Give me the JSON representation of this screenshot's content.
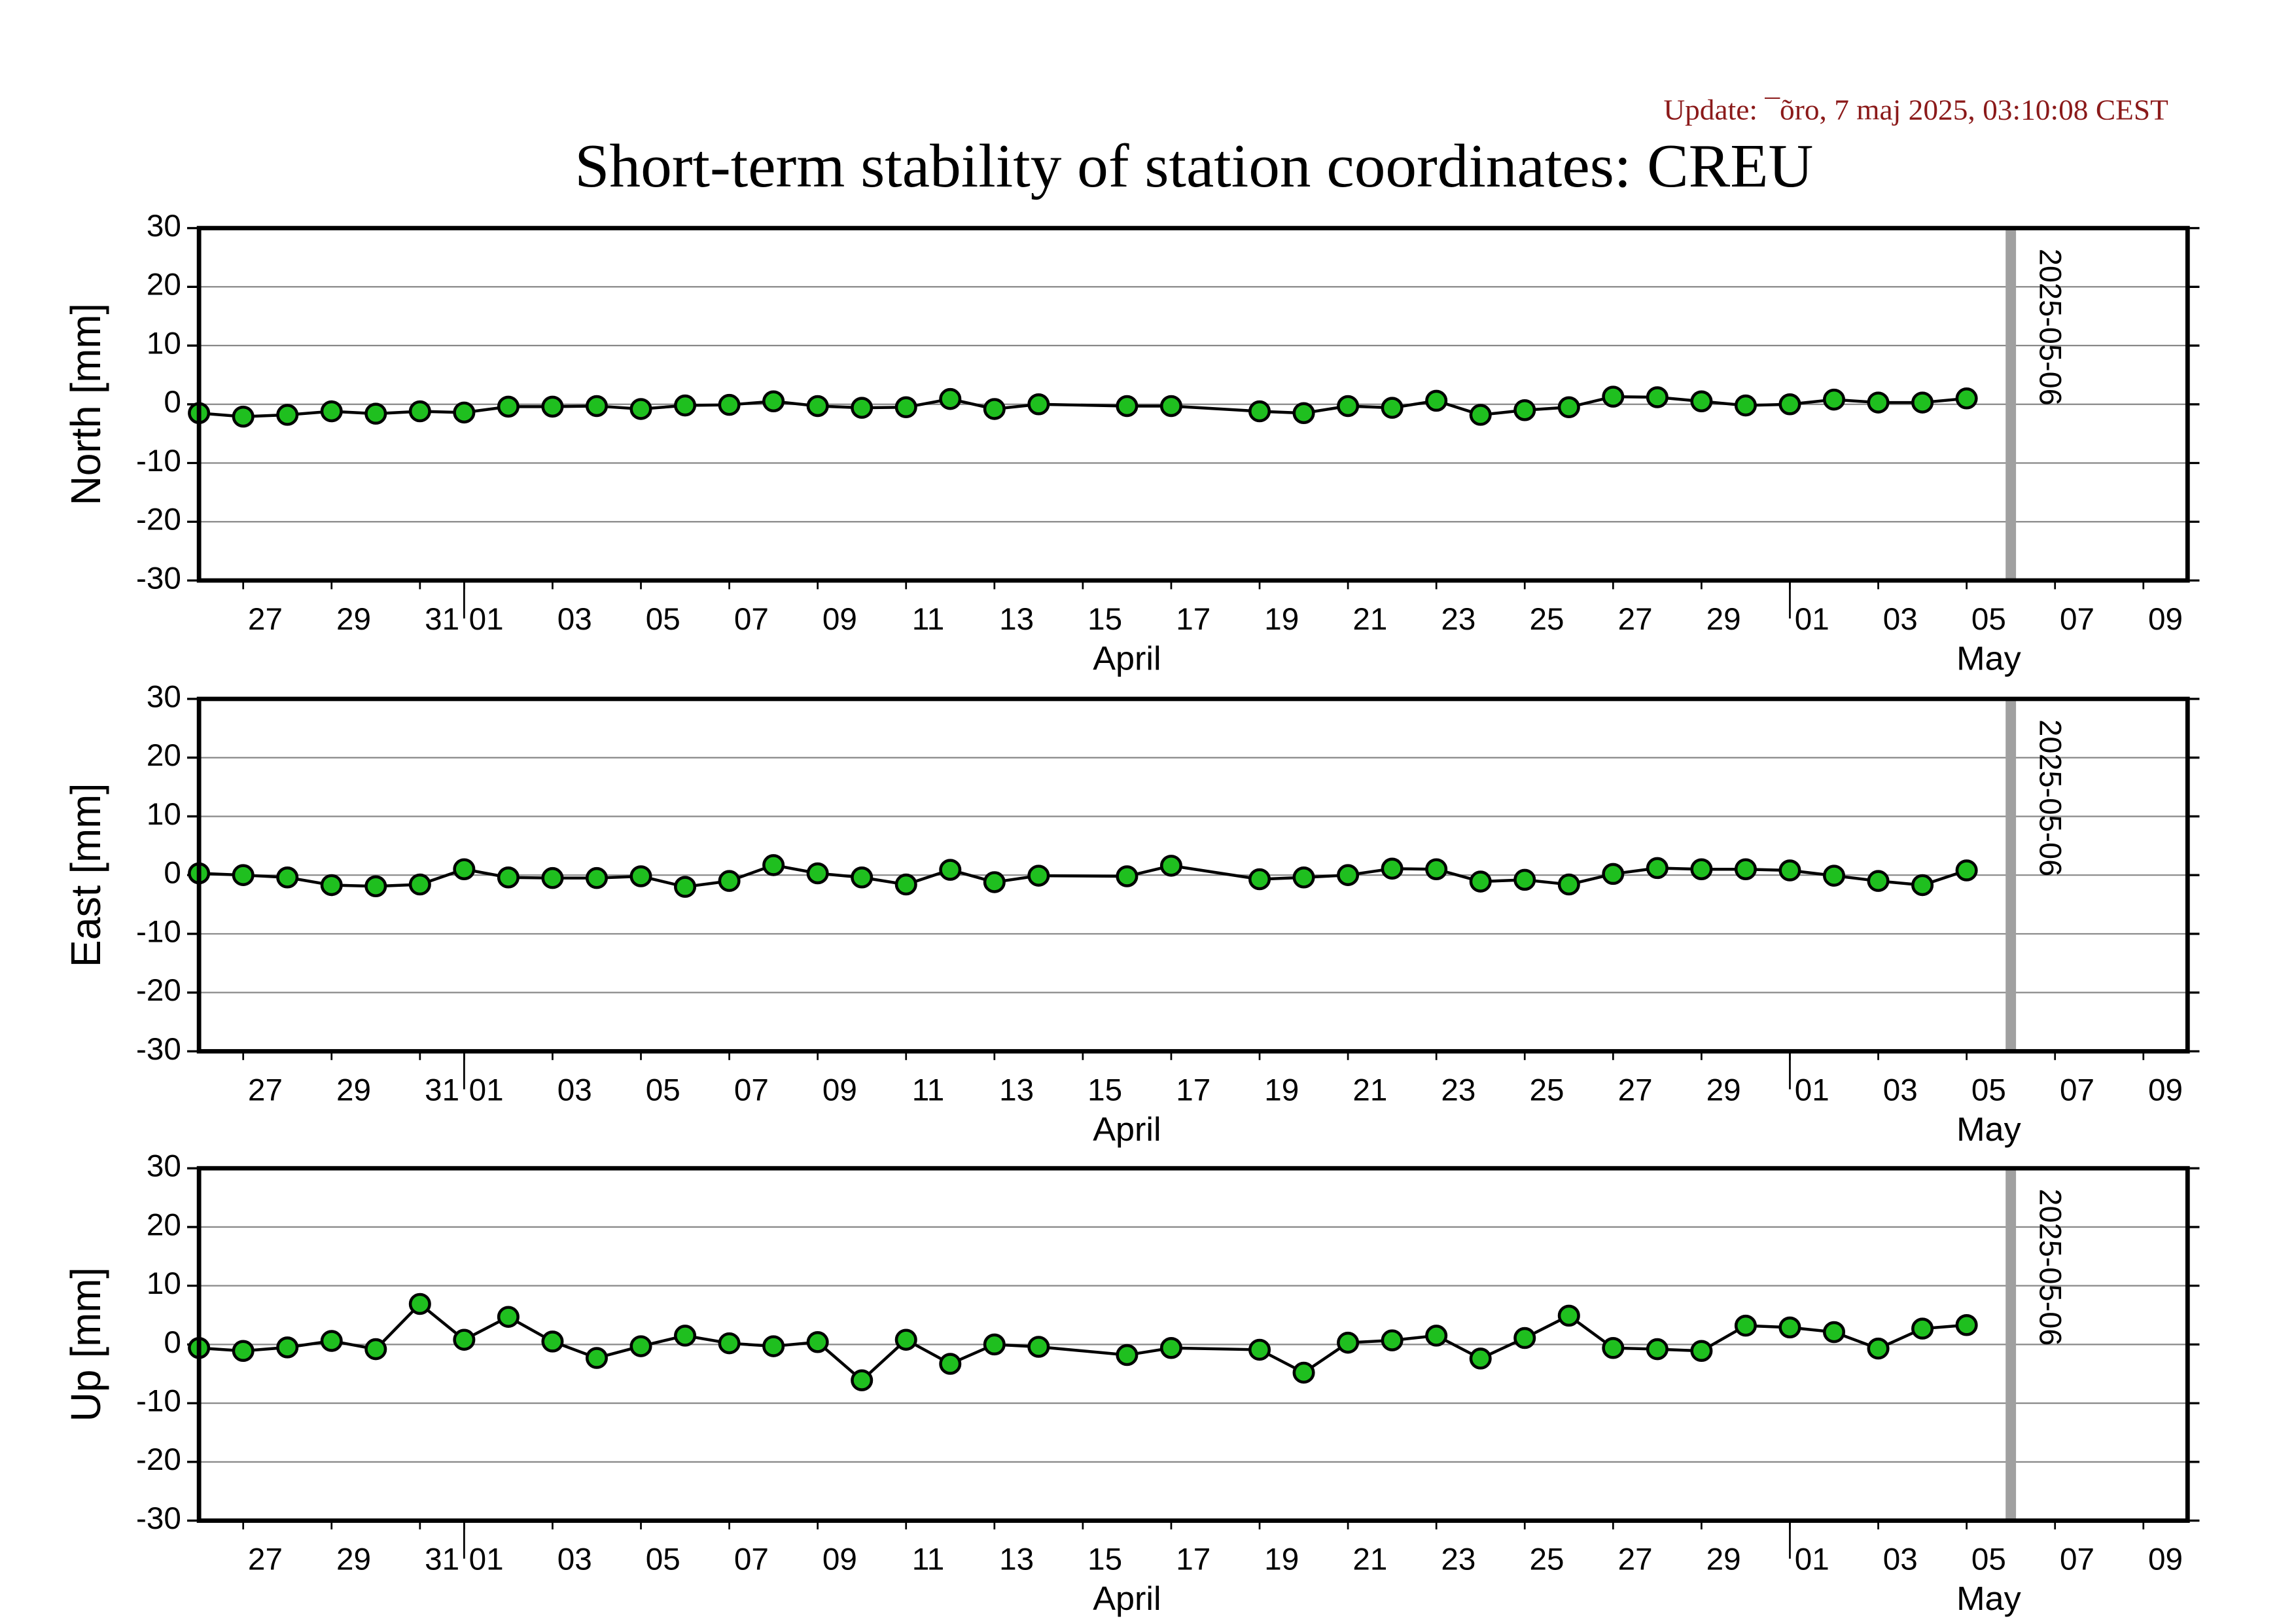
{
  "title": "Short-term stability of station coordinates: CREU",
  "update": "Update: ¯õro, 7 maj 2025, 03:10:08 CEST",
  "chart_data": [
    {
      "type": "line",
      "ylabel": "North [mm]",
      "color": "#1fbf1f",
      "line_color": "#000000",
      "grid": true,
      "x": [
        "2025-03-26",
        "2025-03-27",
        "2025-03-28",
        "2025-03-29",
        "2025-03-30",
        "2025-03-31",
        "2025-04-01",
        "2025-04-02",
        "2025-04-03",
        "2025-04-04",
        "2025-04-05",
        "2025-04-06",
        "2025-04-07",
        "2025-04-08",
        "2025-04-09",
        "2025-04-10",
        "2025-04-11",
        "2025-04-12",
        "2025-04-13",
        "2025-04-14",
        "2025-04-16",
        "2025-04-17",
        "2025-04-19",
        "2025-04-20",
        "2025-04-21",
        "2025-04-22",
        "2025-04-23",
        "2025-04-24",
        "2025-04-25",
        "2025-04-26",
        "2025-04-27",
        "2025-04-28",
        "2025-04-29",
        "2025-04-30",
        "2025-05-01",
        "2025-05-02",
        "2025-05-03",
        "2025-05-04",
        "2025-05-05"
      ],
      "values": [
        -1.5,
        -2.1,
        -1.8,
        -1.2,
        -1.6,
        -1.2,
        -1.4,
        -0.4,
        -0.4,
        -0.3,
        -0.8,
        -0.2,
        -0.1,
        0.5,
        -0.3,
        -0.6,
        -0.5,
        0.9,
        -0.8,
        0,
        -0.3,
        -0.3,
        -1.2,
        -1.5,
        -0.3,
        -0.6,
        0.6,
        -1.8,
        -1.0,
        -0.5,
        1.3,
        1.2,
        0.5,
        -0.2,
        0,
        0.8,
        0.3,
        0.3,
        1.0
      ],
      "ylim": [
        -30,
        30
      ],
      "yticks": [
        -30,
        -20,
        -10,
        0,
        10,
        20,
        30
      ],
      "xlim": [
        "2025-03-26",
        "2025-05-10"
      ],
      "xticks": [
        {
          "value": "2025-03-27",
          "label": "27"
        },
        {
          "value": "2025-03-29",
          "label": "29"
        },
        {
          "value": "2025-03-31",
          "label": "31"
        },
        {
          "value": "2025-04-01",
          "label": "01"
        },
        {
          "value": "2025-04-03",
          "label": "03"
        },
        {
          "value": "2025-04-05",
          "label": "05"
        },
        {
          "value": "2025-04-07",
          "label": "07"
        },
        {
          "value": "2025-04-09",
          "label": "09"
        },
        {
          "value": "2025-04-11",
          "label": "11"
        },
        {
          "value": "2025-04-13",
          "label": "13"
        },
        {
          "value": "2025-04-15",
          "label": "15"
        },
        {
          "value": "2025-04-17",
          "label": "17"
        },
        {
          "value": "2025-04-19",
          "label": "19"
        },
        {
          "value": "2025-04-21",
          "label": "21"
        },
        {
          "value": "2025-04-23",
          "label": "23"
        },
        {
          "value": "2025-04-25",
          "label": "25"
        },
        {
          "value": "2025-04-27",
          "label": "27"
        },
        {
          "value": "2025-04-29",
          "label": "29"
        },
        {
          "value": "2025-05-01",
          "label": "01"
        },
        {
          "value": "2025-05-03",
          "label": "03"
        },
        {
          "value": "2025-05-05",
          "label": "05"
        },
        {
          "value": "2025-05-07",
          "label": "07"
        },
        {
          "value": "2025-05-09",
          "label": "09"
        }
      ],
      "months": [
        {
          "value": "2025-04-01",
          "label": "April"
        },
        {
          "value": "2025-05-01",
          "label": "May"
        }
      ],
      "vline": "2025-05-06",
      "vline_color": "#a0a0a0"
    },
    {
      "type": "line",
      "ylabel": "East [mm]",
      "color": "#1fbf1f",
      "line_color": "#000000",
      "grid": true,
      "x": [
        "2025-03-26",
        "2025-03-27",
        "2025-03-28",
        "2025-03-29",
        "2025-03-30",
        "2025-03-31",
        "2025-04-01",
        "2025-04-02",
        "2025-04-03",
        "2025-04-04",
        "2025-04-05",
        "2025-04-06",
        "2025-04-07",
        "2025-04-08",
        "2025-04-09",
        "2025-04-10",
        "2025-04-11",
        "2025-04-12",
        "2025-04-13",
        "2025-04-14",
        "2025-04-16",
        "2025-04-17",
        "2025-04-19",
        "2025-04-20",
        "2025-04-21",
        "2025-04-22",
        "2025-04-23",
        "2025-04-24",
        "2025-04-25",
        "2025-04-26",
        "2025-04-27",
        "2025-04-28",
        "2025-04-29",
        "2025-04-30",
        "2025-05-01",
        "2025-05-02",
        "2025-05-03",
        "2025-05-04",
        "2025-05-05"
      ],
      "values": [
        0.3,
        0,
        -0.4,
        -1.7,
        -1.9,
        -1.6,
        1.0,
        -0.4,
        -0.5,
        -0.5,
        -0.2,
        -2.0,
        -1.0,
        1.7,
        0.3,
        -0.4,
        -1.6,
        0.9,
        -1.2,
        -0.1,
        -0.2,
        1.6,
        -0.7,
        -0.4,
        0,
        1.1,
        1.0,
        -1.1,
        -0.8,
        -1.6,
        0.2,
        1.2,
        1.0,
        1.0,
        0.8,
        -0.1,
        -1.0,
        -1.7,
        0.8
      ],
      "ylim": [
        -30,
        30
      ],
      "yticks": [
        -30,
        -20,
        -10,
        0,
        10,
        20,
        30
      ],
      "xlim": [
        "2025-03-26",
        "2025-05-10"
      ],
      "xticks": [
        {
          "value": "2025-03-27",
          "label": "27"
        },
        {
          "value": "2025-03-29",
          "label": "29"
        },
        {
          "value": "2025-03-31",
          "label": "31"
        },
        {
          "value": "2025-04-01",
          "label": "01"
        },
        {
          "value": "2025-04-03",
          "label": "03"
        },
        {
          "value": "2025-04-05",
          "label": "05"
        },
        {
          "value": "2025-04-07",
          "label": "07"
        },
        {
          "value": "2025-04-09",
          "label": "09"
        },
        {
          "value": "2025-04-11",
          "label": "11"
        },
        {
          "value": "2025-04-13",
          "label": "13"
        },
        {
          "value": "2025-04-15",
          "label": "15"
        },
        {
          "value": "2025-04-17",
          "label": "17"
        },
        {
          "value": "2025-04-19",
          "label": "19"
        },
        {
          "value": "2025-04-21",
          "label": "21"
        },
        {
          "value": "2025-04-23",
          "label": "23"
        },
        {
          "value": "2025-04-25",
          "label": "25"
        },
        {
          "value": "2025-04-27",
          "label": "27"
        },
        {
          "value": "2025-04-29",
          "label": "29"
        },
        {
          "value": "2025-05-01",
          "label": "01"
        },
        {
          "value": "2025-05-03",
          "label": "03"
        },
        {
          "value": "2025-05-05",
          "label": "05"
        },
        {
          "value": "2025-05-07",
          "label": "07"
        },
        {
          "value": "2025-05-09",
          "label": "09"
        }
      ],
      "months": [
        {
          "value": "2025-04-01",
          "label": "April"
        },
        {
          "value": "2025-05-01",
          "label": "May"
        }
      ],
      "vline": "2025-05-06",
      "vline_color": "#a0a0a0"
    },
    {
      "type": "line",
      "ylabel": "Up [mm]",
      "color": "#1fbf1f",
      "line_color": "#000000",
      "grid": true,
      "x": [
        "2025-03-26",
        "2025-03-27",
        "2025-03-28",
        "2025-03-29",
        "2025-03-30",
        "2025-03-31",
        "2025-04-01",
        "2025-04-02",
        "2025-04-03",
        "2025-04-04",
        "2025-04-05",
        "2025-04-06",
        "2025-04-07",
        "2025-04-08",
        "2025-04-09",
        "2025-04-10",
        "2025-04-11",
        "2025-04-12",
        "2025-04-13",
        "2025-04-14",
        "2025-04-16",
        "2025-04-17",
        "2025-04-19",
        "2025-04-20",
        "2025-04-21",
        "2025-04-22",
        "2025-04-23",
        "2025-04-24",
        "2025-04-25",
        "2025-04-26",
        "2025-04-27",
        "2025-04-28",
        "2025-04-29",
        "2025-04-30",
        "2025-05-01",
        "2025-05-02",
        "2025-05-03",
        "2025-05-04",
        "2025-05-05"
      ],
      "values": [
        -0.6,
        -1.1,
        -0.5,
        0.6,
        -0.8,
        6.9,
        0.8,
        4.7,
        0.5,
        -2.3,
        -0.3,
        1.5,
        0.2,
        -0.3,
        0.4,
        -6.1,
        0.8,
        -3.3,
        0,
        -0.4,
        -1.8,
        -0.6,
        -0.9,
        -4.8,
        0.3,
        0.7,
        1.5,
        -2.4,
        1.1,
        4.9,
        -0.6,
        -0.8,
        -1.1,
        3.2,
        2.9,
        2.1,
        -0.7,
        2.7,
        3.3
      ],
      "ylim": [
        -30,
        30
      ],
      "yticks": [
        -30,
        -20,
        -10,
        0,
        10,
        20,
        30
      ],
      "xlim": [
        "2025-03-26",
        "2025-05-10"
      ],
      "xticks": [
        {
          "value": "2025-03-27",
          "label": "27"
        },
        {
          "value": "2025-03-29",
          "label": "29"
        },
        {
          "value": "2025-03-31",
          "label": "31"
        },
        {
          "value": "2025-04-01",
          "label": "01"
        },
        {
          "value": "2025-04-03",
          "label": "03"
        },
        {
          "value": "2025-04-05",
          "label": "05"
        },
        {
          "value": "2025-04-07",
          "label": "07"
        },
        {
          "value": "2025-04-09",
          "label": "09"
        },
        {
          "value": "2025-04-11",
          "label": "11"
        },
        {
          "value": "2025-04-13",
          "label": "13"
        },
        {
          "value": "2025-04-15",
          "label": "15"
        },
        {
          "value": "2025-04-17",
          "label": "17"
        },
        {
          "value": "2025-04-19",
          "label": "19"
        },
        {
          "value": "2025-04-21",
          "label": "21"
        },
        {
          "value": "2025-04-23",
          "label": "23"
        },
        {
          "value": "2025-04-25",
          "label": "25"
        },
        {
          "value": "2025-04-27",
          "label": "27"
        },
        {
          "value": "2025-04-29",
          "label": "29"
        },
        {
          "value": "2025-05-01",
          "label": "01"
        },
        {
          "value": "2025-05-03",
          "label": "03"
        },
        {
          "value": "2025-05-05",
          "label": "05"
        },
        {
          "value": "2025-05-07",
          "label": "07"
        },
        {
          "value": "2025-05-09",
          "label": "09"
        }
      ],
      "months": [
        {
          "value": "2025-04-01",
          "label": "April"
        },
        {
          "value": "2025-05-01",
          "label": "May"
        }
      ],
      "vline": "2025-05-06",
      "vline_color": "#a0a0a0"
    }
  ]
}
